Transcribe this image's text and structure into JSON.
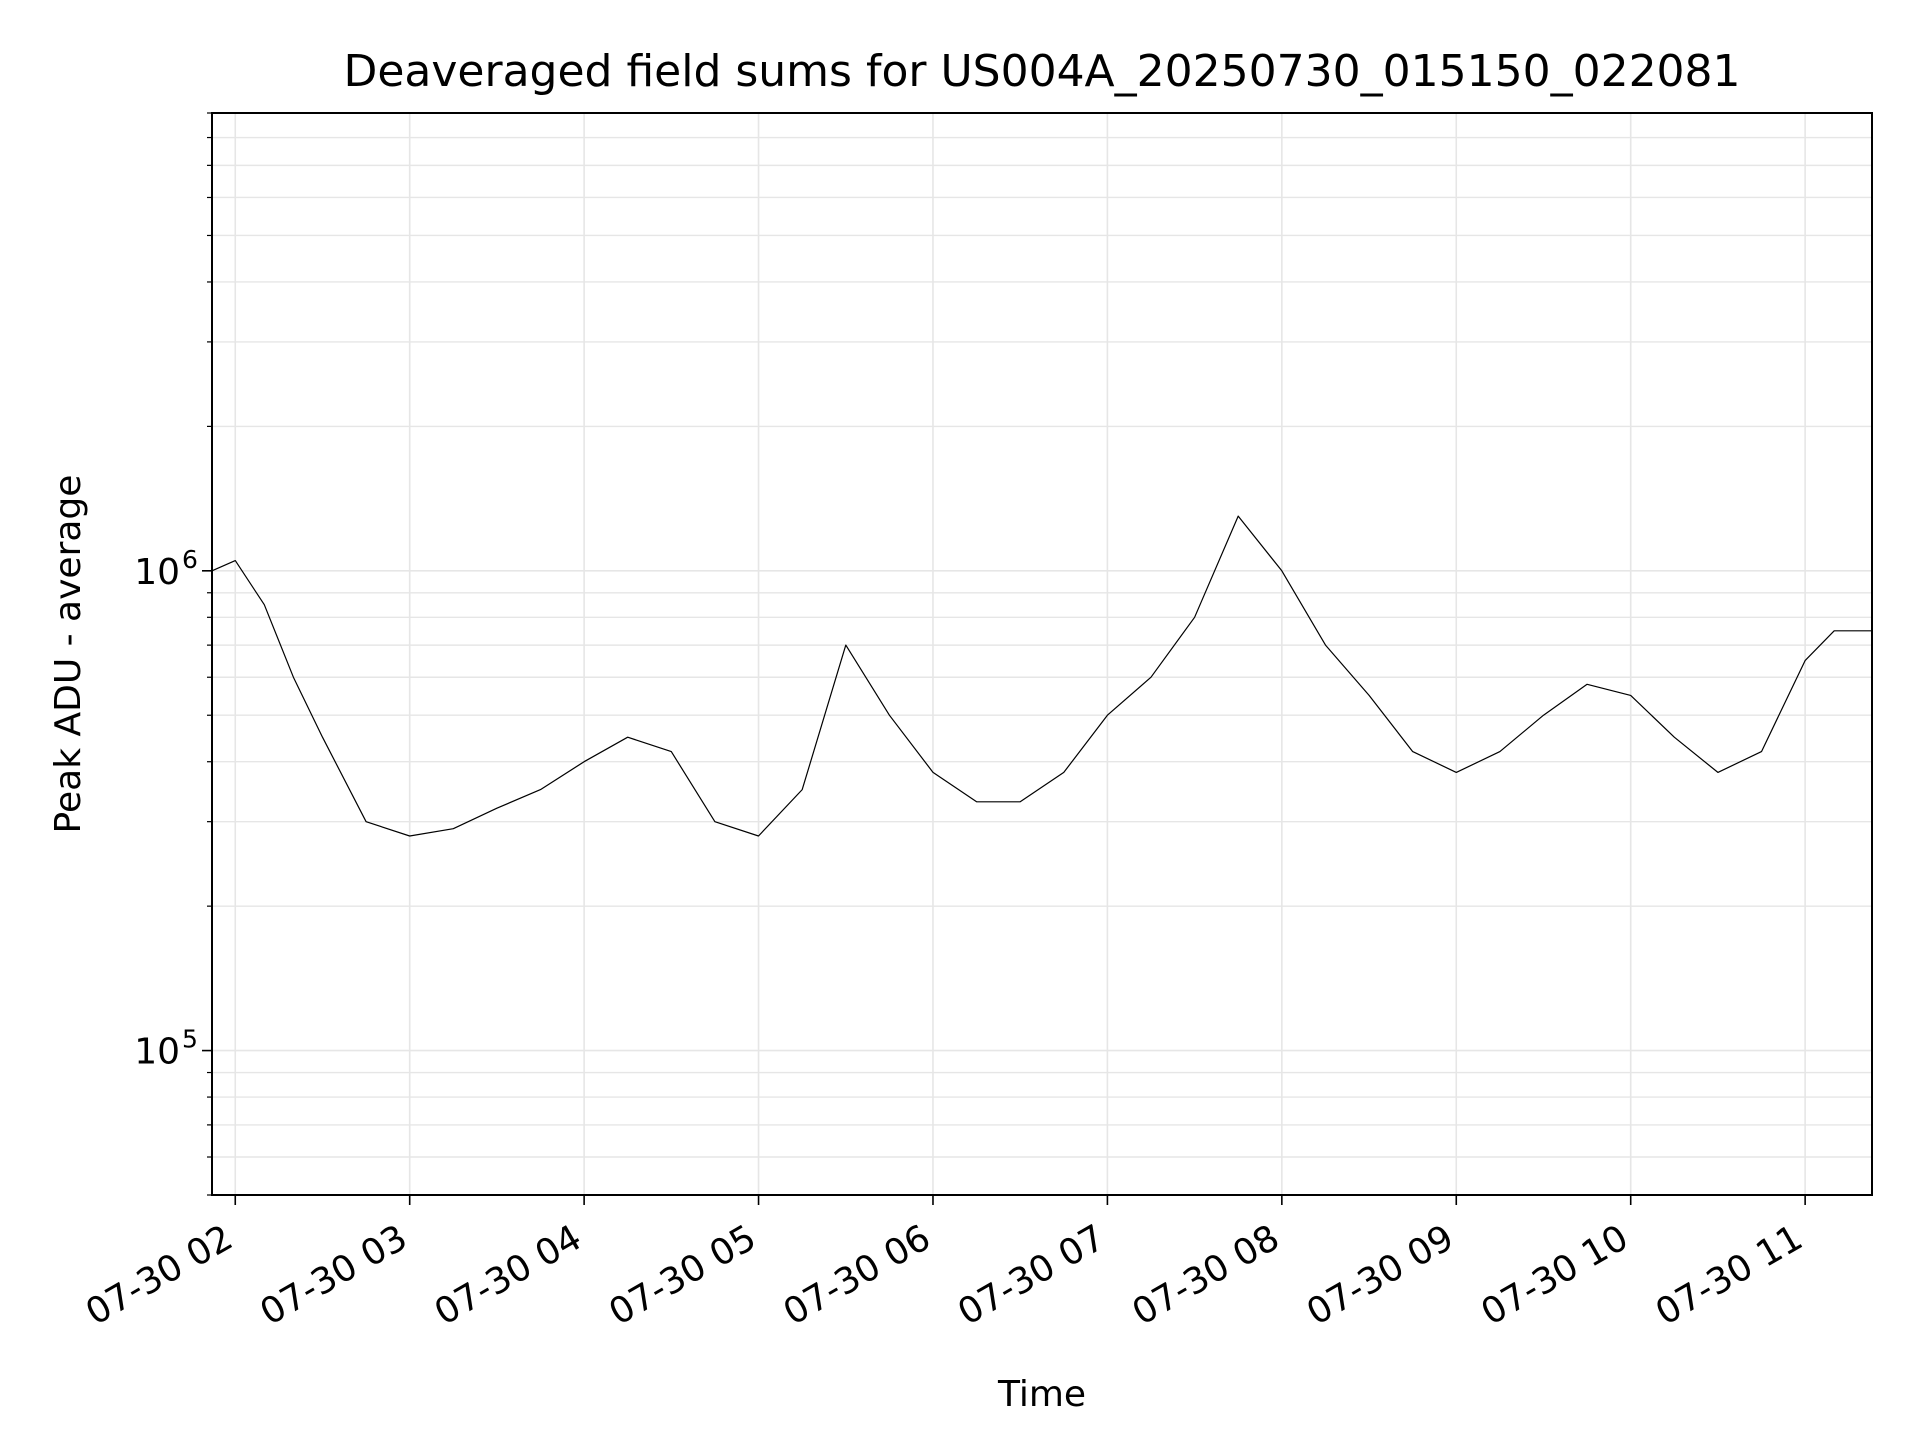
{
  "chart_data": {
    "type": "line",
    "title": "Deaveraged field sums for US004A_20250730_015150_022081",
    "xlabel": "Time",
    "ylabel": "Peak ADU - average",
    "yscale": "log",
    "ylim": [
      50000,
      9000000
    ],
    "xlim": [
      "2025-07-30 01:52",
      "2025-07-30 11:23"
    ],
    "x_ticks": [
      "2025-07-30 02:00",
      "2025-07-30 03:00",
      "2025-07-30 04:00",
      "2025-07-30 05:00",
      "2025-07-30 06:00",
      "2025-07-30 07:00",
      "2025-07-30 08:00",
      "2025-07-30 09:00",
      "2025-07-30 10:00",
      "2025-07-30 11:00"
    ],
    "x_tick_labels": [
      "07-30 02",
      "07-30 03",
      "07-30 04",
      "07-30 05",
      "07-30 06",
      "07-30 07",
      "07-30 08",
      "07-30 09",
      "07-30 10",
      "07-30 11"
    ],
    "y_ticks": [
      100000,
      1000000
    ],
    "y_tick_labels": [
      {
        "base": "10",
        "exp": "5"
      },
      {
        "base": "10",
        "exp": "6"
      }
    ],
    "grid": true,
    "line_color": "#000000",
    "grid_color": "#e6e6e6",
    "series": [
      {
        "x": [
          "2025-07-30 01:52",
          "2025-07-30 02:00",
          "2025-07-30 02:10",
          "2025-07-30 02:20",
          "2025-07-30 02:30",
          "2025-07-30 02:45",
          "2025-07-30 03:00",
          "2025-07-30 03:15",
          "2025-07-30 03:30",
          "2025-07-30 03:45",
          "2025-07-30 04:00",
          "2025-07-30 04:15",
          "2025-07-30 04:30",
          "2025-07-30 04:45",
          "2025-07-30 05:00",
          "2025-07-30 05:15",
          "2025-07-30 05:30",
          "2025-07-30 05:45",
          "2025-07-30 06:00",
          "2025-07-30 06:15",
          "2025-07-30 06:30",
          "2025-07-30 06:45",
          "2025-07-30 07:00",
          "2025-07-30 07:15",
          "2025-07-30 07:30",
          "2025-07-30 07:45",
          "2025-07-30 08:00",
          "2025-07-30 08:15",
          "2025-07-30 08:30",
          "2025-07-30 08:45",
          "2025-07-30 09:00",
          "2025-07-30 09:15",
          "2025-07-30 09:30",
          "2025-07-30 09:45",
          "2025-07-30 10:00",
          "2025-07-30 10:15",
          "2025-07-30 10:30",
          "2025-07-30 10:45",
          "2025-07-30 11:00",
          "2025-07-30 11:10",
          "2025-07-30 11:23"
        ],
        "y": [
          1000000,
          1050000,
          850000,
          600000,
          450000,
          300000,
          280000,
          290000,
          320000,
          350000,
          400000,
          450000,
          420000,
          300000,
          280000,
          350000,
          700000,
          500000,
          380000,
          330000,
          330000,
          380000,
          500000,
          600000,
          800000,
          1300000,
          1000000,
          700000,
          550000,
          420000,
          380000,
          420000,
          500000,
          580000,
          550000,
          450000,
          380000,
          420000,
          650000,
          750000,
          750000
        ]
      }
    ]
  }
}
